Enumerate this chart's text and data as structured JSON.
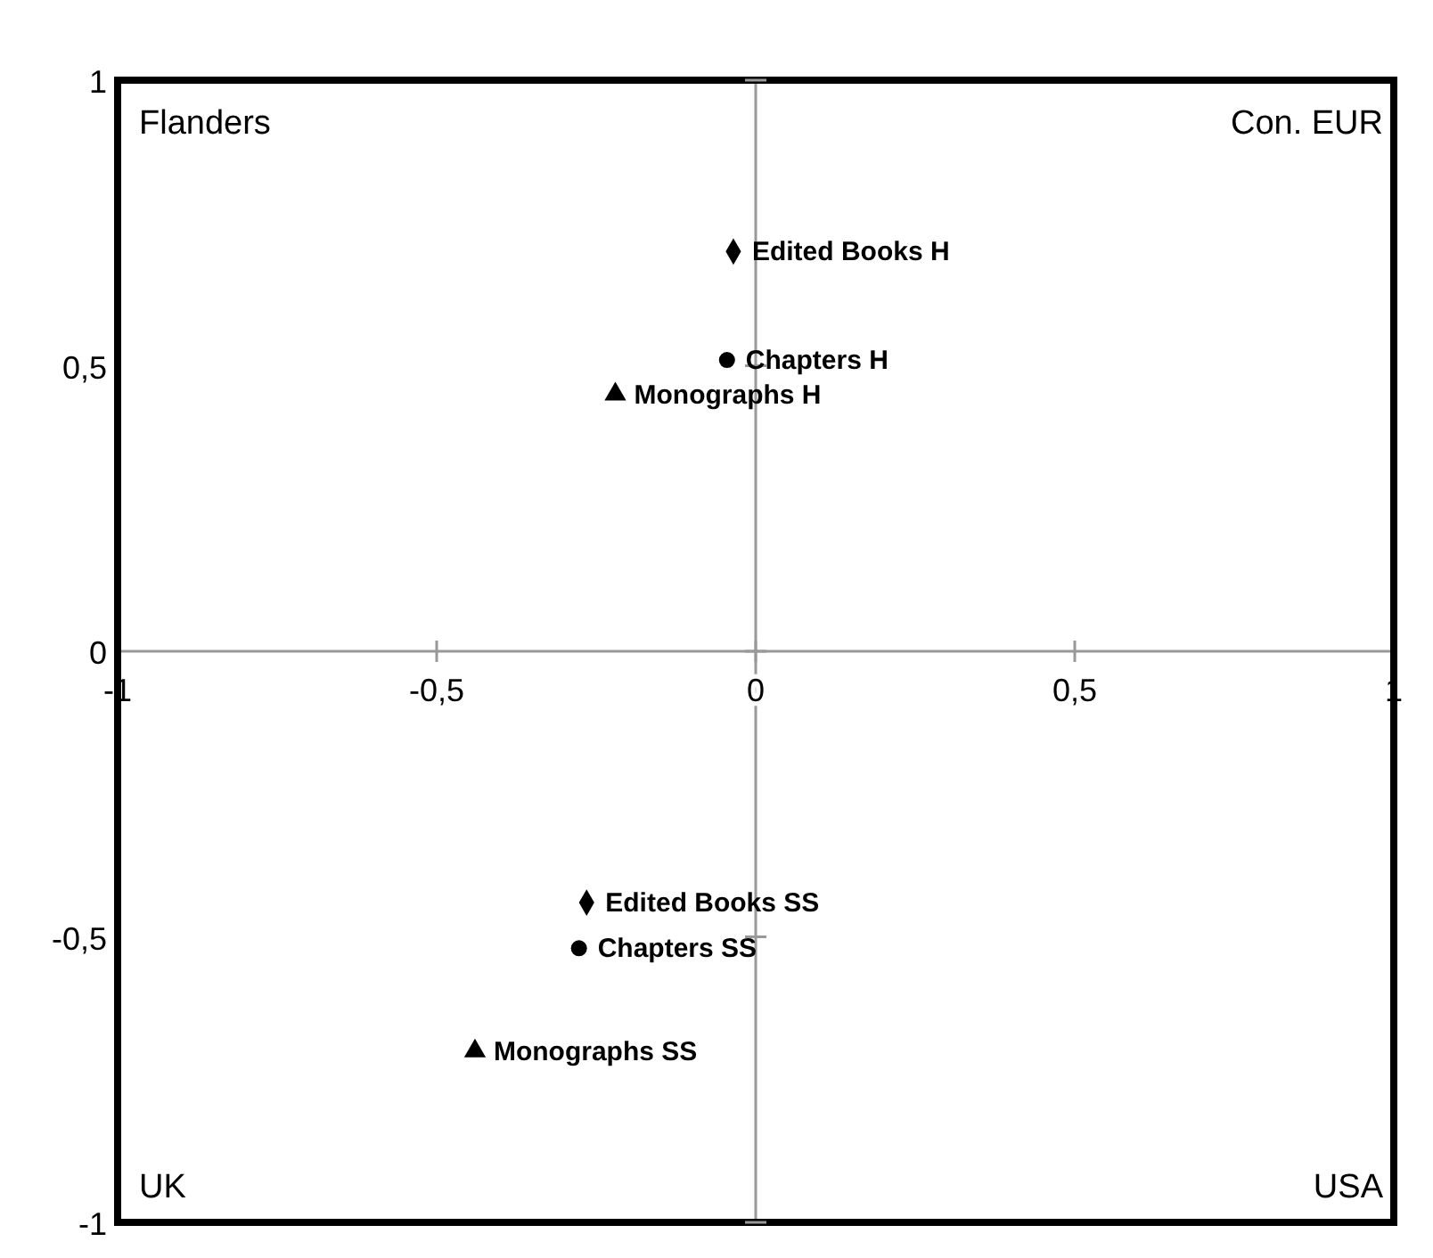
{
  "chart_data": {
    "type": "scatter",
    "xlim": [
      -1,
      1
    ],
    "ylim": [
      -1,
      1
    ],
    "xticks": [
      -1,
      {
        "value": -0.5,
        "label": "-0,5"
      },
      0,
      {
        "value": 0.5,
        "label": "0,5"
      },
      1
    ],
    "yticks": [
      -1,
      {
        "value": -0.5,
        "label": "-0,5"
      },
      0,
      {
        "value": 0.5,
        "label": "0,5"
      },
      1
    ],
    "legend": false,
    "annotations": [
      "Flanders",
      "Con. EUR",
      "UK",
      "USA"
    ],
    "series": [
      {
        "name": "Edited Books H",
        "color": "#000000",
        "marker": "diamond",
        "x": [
          -0.035
        ],
        "values": [
          0.7
        ]
      },
      {
        "name": "Chapters H",
        "color": "#000000",
        "marker": "circle",
        "x": [
          -0.045
        ],
        "values": [
          0.51
        ]
      },
      {
        "name": "Monographs H",
        "color": "#000000",
        "marker": "triangle",
        "x": [
          -0.22
        ],
        "values": [
          0.45
        ]
      },
      {
        "name": "Edited Books SS",
        "color": "#000000",
        "marker": "diamond",
        "x": [
          -0.265
        ],
        "values": [
          -0.44
        ]
      },
      {
        "name": "Chapters SS",
        "color": "#000000",
        "marker": "circle",
        "x": [
          -0.277
        ],
        "values": [
          -0.52
        ]
      },
      {
        "name": "Monographs SS",
        "color": "#000000",
        "marker": "triangle",
        "x": [
          -0.44
        ],
        "values": [
          -0.7
        ]
      }
    ]
  }
}
